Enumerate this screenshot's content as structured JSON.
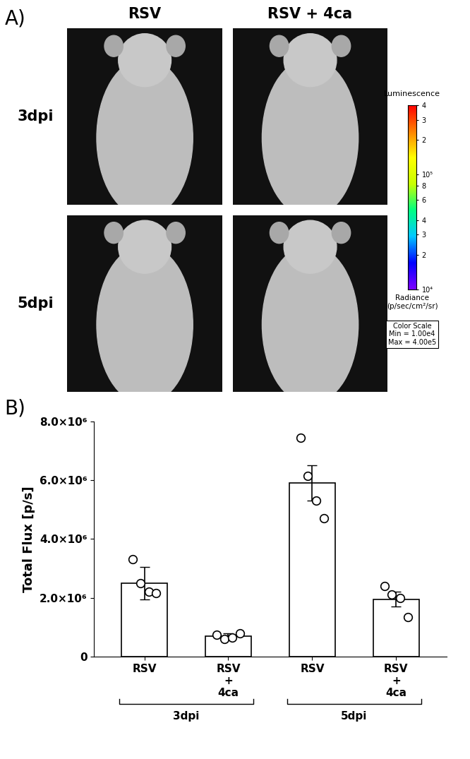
{
  "panel_a": {
    "label": "A)",
    "columns": [
      "RSV",
      "RSV + 4ca"
    ],
    "rows": [
      "3dpi",
      "5dpi"
    ],
    "colorbar": {
      "title": "Luminescence",
      "unit_label": "Radiance\n(p/sec/cm²/sr)",
      "lim": [
        10000,
        400000
      ],
      "log": true,
      "ticks": [
        {
          "value": 10000,
          "label": "10⁴"
        },
        {
          "value": 20000,
          "label": "2"
        },
        {
          "value": 30000,
          "label": "3"
        },
        {
          "value": 40000,
          "label": "4"
        },
        {
          "value": 60000,
          "label": "6"
        },
        {
          "value": 80000,
          "label": "8"
        },
        {
          "value": 100000,
          "label": "10⁵"
        },
        {
          "value": 200000,
          "label": "2"
        },
        {
          "value": 300000,
          "label": "3"
        },
        {
          "value": 400000,
          "label": "4"
        }
      ],
      "scale_box": "Color Scale\nMin = 1.00e4\nMax = 4.00e5"
    }
  },
  "chart_data": {
    "panel_label": "B)",
    "type": "bar",
    "categories": [
      "RSV",
      "RSV + 4ca",
      "RSV",
      "RSV + 4ca"
    ],
    "groups": [
      "3dpi",
      "5dpi"
    ],
    "values": [
      2500000,
      700000,
      5900000,
      1950000
    ],
    "errors": [
      550000,
      100000,
      600000,
      250000
    ],
    "points": [
      [
        3300000,
        2500000,
        2200000,
        2150000
      ],
      [
        750000,
        600000,
        650000,
        800000
      ],
      [
        7450000,
        6150000,
        5300000,
        4700000
      ],
      [
        2400000,
        2100000,
        2000000,
        1350000
      ]
    ],
    "color": "#ffffff",
    "y_label": "Total Flux [p/s]",
    "ylim": [
      0,
      8000000
    ],
    "yticks": [
      0,
      {
        "value": 2000000,
        "label": "2.0×10⁶"
      },
      {
        "value": 4000000,
        "label": "4.0×10⁶"
      },
      {
        "value": 6000000,
        "label": "6.0×10⁶"
      },
      {
        "value": 8000000,
        "label": "8.0×10⁶"
      }
    ]
  }
}
